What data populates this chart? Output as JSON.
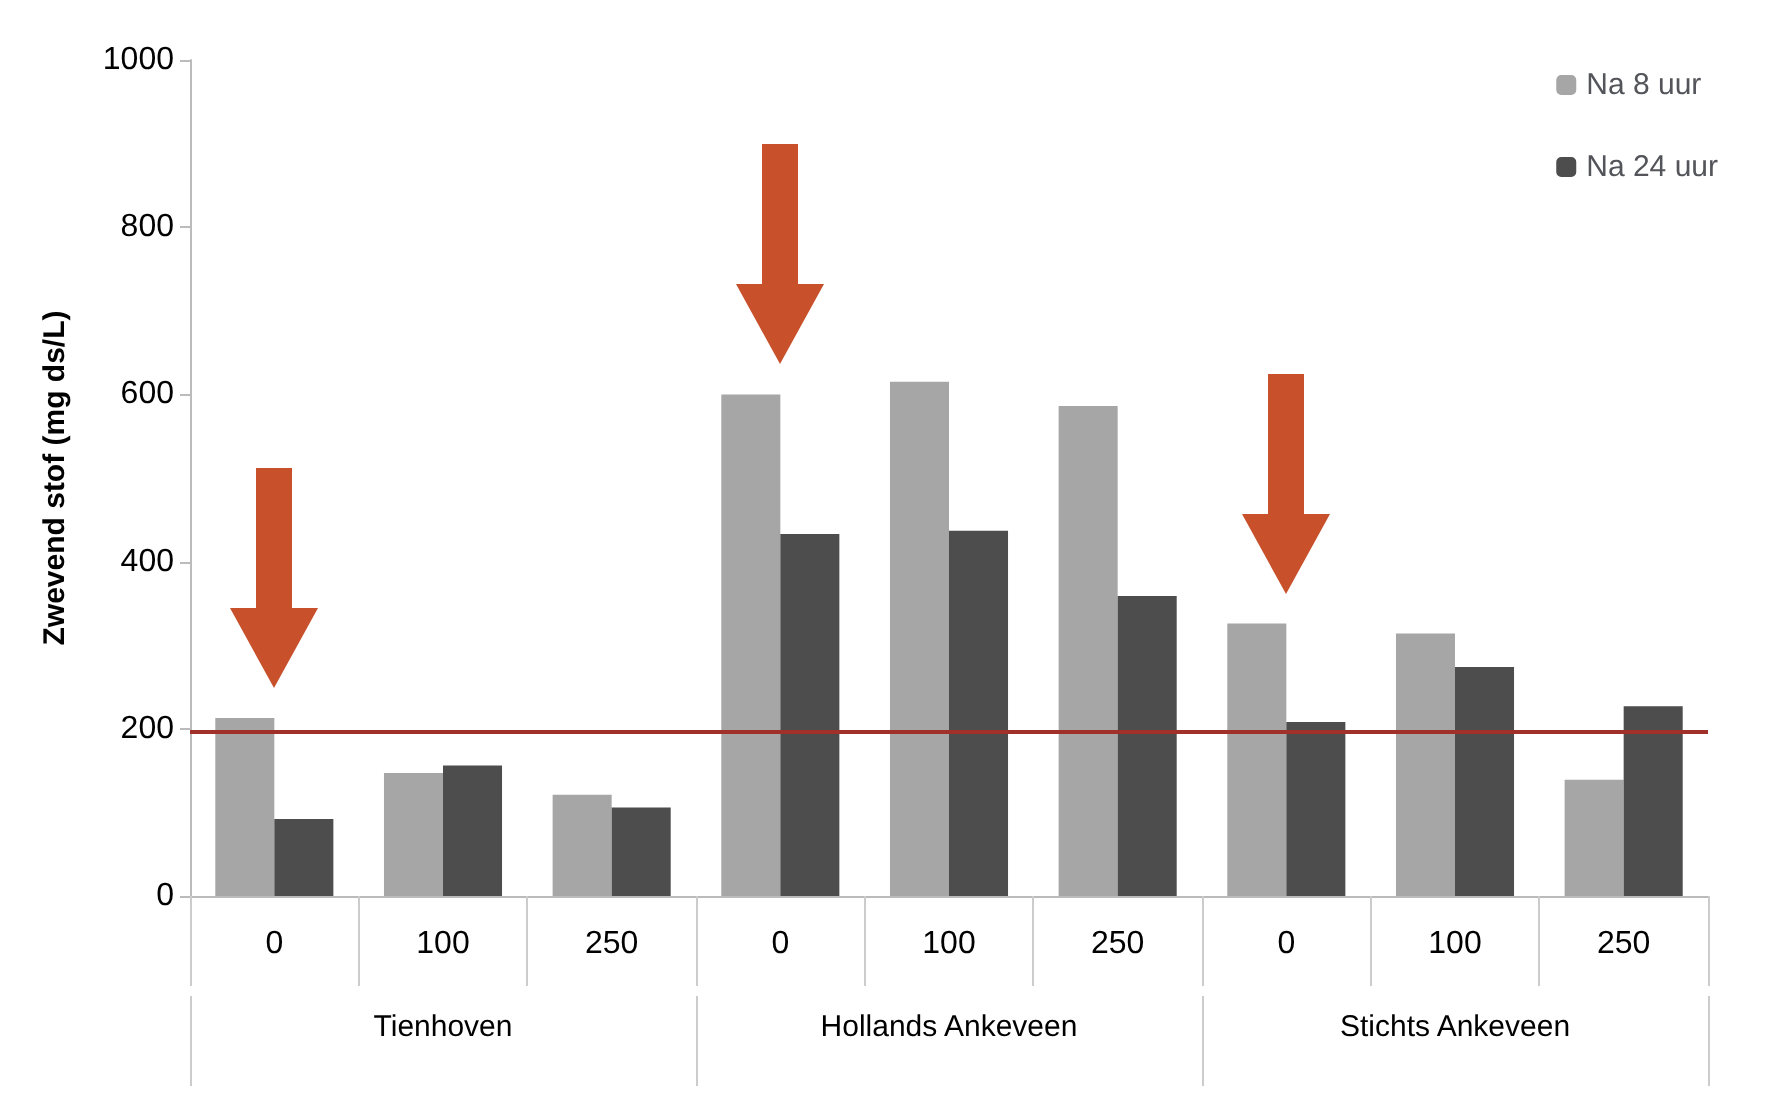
{
  "chart_data": {
    "type": "bar",
    "ylabel": "Zwevend stof (mg ds/L)",
    "categories": [
      "0",
      "100",
      "250",
      "0",
      "100",
      "250",
      "0",
      "100",
      "250"
    ],
    "series": [
      {
        "name": "Na 8 uur",
        "color": "#a6a6a6",
        "values": [
          213,
          147,
          121,
          600,
          615,
          586,
          326,
          314,
          139
        ]
      },
      {
        "name": "Na 24 uur",
        "color": "#4d4d4d",
        "values": [
          92,
          156,
          106,
          433,
          437,
          359,
          208,
          274,
          227
        ]
      }
    ],
    "ylim": [
      0,
      1000
    ],
    "yticks": [
      0,
      200,
      400,
      600,
      800,
      1000
    ],
    "grid": false,
    "legend": "top right",
    "ref_lines": [
      {
        "axis": "y",
        "value": 196,
        "color": "#a0302a"
      }
    ],
    "annotations": [
      "Tienhoven",
      "Hollands Ankeveen",
      "Stichts Ankeveen"
    ]
  }
}
